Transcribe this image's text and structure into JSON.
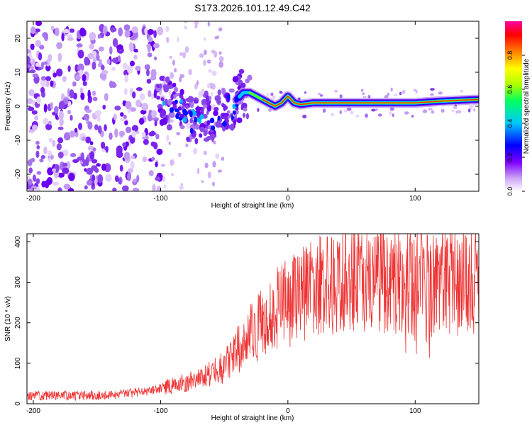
{
  "title": "S173.2026.101.12.49.C42",
  "chart_data": [
    {
      "type": "heatmap",
      "name": "spectrogram",
      "xlabel": "Height of straight line (km)",
      "ylabel": "Frequency (Hz)",
      "xlim": [
        -205,
        150
      ],
      "ylim": [
        -25,
        25
      ],
      "xticks": [
        -200,
        -100,
        0,
        100
      ],
      "yticks": [
        -20,
        -10,
        0,
        10,
        20
      ],
      "ridge_frequency_hz": [
        [
          -100,
          2
        ],
        [
          -90,
          0
        ],
        [
          -80,
          -3
        ],
        [
          -70,
          -4
        ],
        [
          -60,
          -3
        ],
        [
          -50,
          -2
        ],
        [
          -40,
          2
        ],
        [
          -35,
          4
        ],
        [
          -30,
          4
        ],
        [
          -25,
          3
        ],
        [
          -20,
          2
        ],
        [
          -15,
          1
        ],
        [
          -10,
          0
        ],
        [
          -5,
          1
        ],
        [
          0,
          3
        ],
        [
          5,
          1
        ],
        [
          10,
          0.5
        ],
        [
          20,
          1
        ],
        [
          40,
          1
        ],
        [
          60,
          1
        ],
        [
          80,
          1
        ],
        [
          100,
          1
        ],
        [
          120,
          1.5
        ],
        [
          150,
          2
        ]
      ]
    },
    {
      "type": "line",
      "name": "snr",
      "xlabel": "Height of straight line (km)",
      "ylabel": "SNR (10 * v/v)",
      "xlim": [
        -205,
        150
      ],
      "ylim": [
        0,
        420
      ],
      "xticks": [
        -200,
        -100,
        0,
        100
      ],
      "yticks": [
        0,
        100,
        200,
        300,
        400
      ],
      "color": "#ee3333",
      "trend": [
        [
          -205,
          20
        ],
        [
          -150,
          20
        ],
        [
          -110,
          30
        ],
        [
          -90,
          45
        ],
        [
          -70,
          60
        ],
        [
          -50,
          90
        ],
        [
          -40,
          130
        ],
        [
          -30,
          170
        ],
        [
          -20,
          200
        ],
        [
          -10,
          230
        ],
        [
          0,
          250
        ],
        [
          10,
          270
        ],
        [
          20,
          290
        ],
        [
          40,
          300
        ],
        [
          60,
          305
        ],
        [
          80,
          300
        ],
        [
          100,
          300
        ],
        [
          120,
          300
        ],
        [
          150,
          310
        ]
      ]
    },
    {
      "type": "colorbar",
      "name": "colorbar",
      "label": "Normalized spectral amplitude",
      "range": [
        0,
        1
      ],
      "ticks": [
        0.0,
        0.2,
        0.4,
        0.6,
        0.8
      ],
      "tick_labels": [
        "0.0",
        "0.2",
        "0.4",
        "0.6",
        "0.8"
      ],
      "colors": [
        "#ffffff",
        "#c9a0f5",
        "#7f00ff",
        "#0000ff",
        "#00c8ff",
        "#00ff60",
        "#b0ff00",
        "#ffff00",
        "#ff8000",
        "#ff0000",
        "#ff00a0"
      ]
    }
  ]
}
